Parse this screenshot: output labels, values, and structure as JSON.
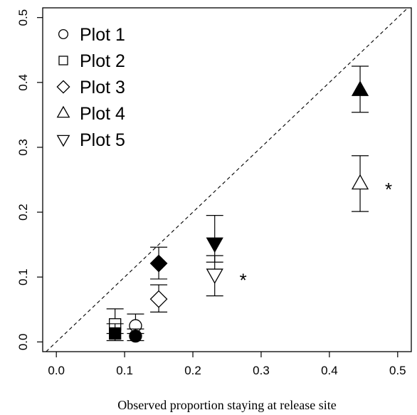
{
  "chart_data": {
    "type": "scatter",
    "title": "",
    "xlabel": "Observed proportion staying at release site",
    "ylabel": "",
    "xlim": [
      -0.02,
      0.52
    ],
    "ylim": [
      -0.015,
      0.515
    ],
    "xticks": [
      "0.0",
      "0.1",
      "0.2",
      "0.3",
      "0.4",
      "0.5"
    ],
    "yticks": [
      "0.0",
      "0.1",
      "0.2",
      "0.3",
      "0.4",
      "0.5"
    ],
    "grid": false,
    "reference_line": "y = x (dashed)",
    "legend": {
      "placement": "top-left",
      "entries": [
        {
          "label": "Plot 1",
          "marker": "circle"
        },
        {
          "label": "Plot 2",
          "marker": "square"
        },
        {
          "label": "Plot 3",
          "marker": "diamond"
        },
        {
          "label": "Plot 4",
          "marker": "triangle-up"
        },
        {
          "label": "Plot 5",
          "marker": "triangle-down"
        }
      ]
    },
    "points": [
      {
        "plot": 1,
        "marker": "circle",
        "filled": false,
        "x": 0.116,
        "y": 0.025,
        "err_low": 0.013,
        "err_high": 0.043
      },
      {
        "plot": 1,
        "marker": "circle",
        "filled": true,
        "x": 0.116,
        "y": 0.009,
        "err_low": 0.002,
        "err_high": 0.02
      },
      {
        "plot": 2,
        "marker": "square",
        "filled": false,
        "x": 0.086,
        "y": 0.027,
        "err_low": 0.013,
        "err_high": 0.051
      },
      {
        "plot": 2,
        "marker": "square",
        "filled": true,
        "x": 0.086,
        "y": 0.013,
        "err_low": 0.002,
        "err_high": 0.028
      },
      {
        "plot": 3,
        "marker": "diamond",
        "filled": false,
        "x": 0.15,
        "y": 0.066,
        "err_low": 0.046,
        "err_high": 0.088
      },
      {
        "plot": 3,
        "marker": "diamond",
        "filled": true,
        "x": 0.15,
        "y": 0.121,
        "err_low": 0.097,
        "err_high": 0.146
      },
      {
        "plot": 4,
        "marker": "triangle-up",
        "filled": false,
        "x": 0.445,
        "y": 0.244,
        "err_low": 0.201,
        "err_high": 0.287,
        "asterisk": "*"
      },
      {
        "plot": 4,
        "marker": "triangle-up",
        "filled": true,
        "x": 0.445,
        "y": 0.388,
        "err_low": 0.354,
        "err_high": 0.425
      },
      {
        "plot": 5,
        "marker": "triangle-down",
        "filled": false,
        "x": 0.232,
        "y": 0.104,
        "err_low": 0.071,
        "err_high": 0.133,
        "asterisk": "*"
      },
      {
        "plot": 5,
        "marker": "triangle-down",
        "filled": true,
        "x": 0.232,
        "y": 0.152,
        "err_low": 0.123,
        "err_high": 0.195
      }
    ]
  }
}
